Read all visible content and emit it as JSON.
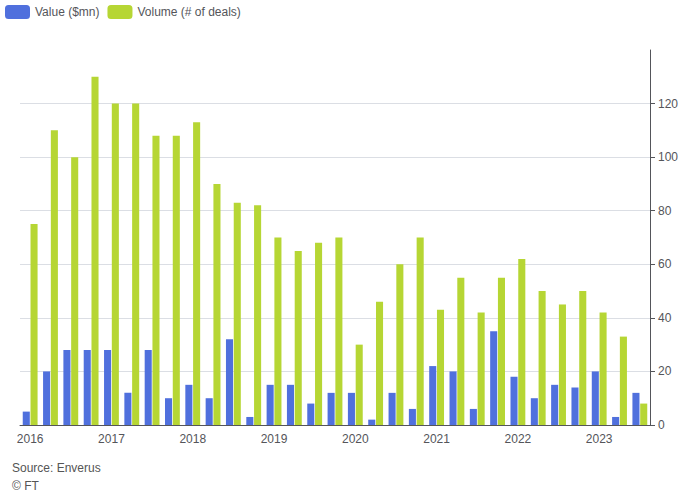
{
  "chart_data": {
    "type": "bar",
    "categories": [
      "2016",
      null,
      null,
      null,
      "2017",
      null,
      null,
      null,
      "2018",
      null,
      null,
      null,
      "2019",
      null,
      null,
      null,
      "2020",
      null,
      null,
      null,
      "2021",
      null,
      null,
      null,
      "2022",
      null,
      null,
      null,
      "2023",
      null,
      null
    ],
    "series": [
      {
        "name": "Value ($mn)",
        "values": [
          5,
          20,
          28,
          28,
          28,
          12,
          28,
          10,
          15,
          10,
          32,
          3,
          15,
          15,
          8,
          12,
          12,
          2,
          12,
          6,
          22,
          20,
          6,
          35,
          18,
          10,
          15,
          14,
          20,
          3,
          12
        ]
      },
      {
        "name": "Volume (# of deals)",
        "values": [
          75,
          110,
          100,
          130,
          120,
          120,
          108,
          108,
          113,
          90,
          83,
          82,
          70,
          65,
          68,
          70,
          30,
          46,
          60,
          70,
          43,
          55,
          42,
          55,
          62,
          50,
          45,
          50,
          42,
          33,
          8
        ]
      }
    ],
    "ylim": [
      0,
      140
    ],
    "yticks": [
      0,
      20,
      40,
      60,
      80,
      100,
      120
    ],
    "grid": true,
    "legend": "upper left",
    "annotations": [
      "Source: Enverus",
      "© FT"
    ]
  }
}
